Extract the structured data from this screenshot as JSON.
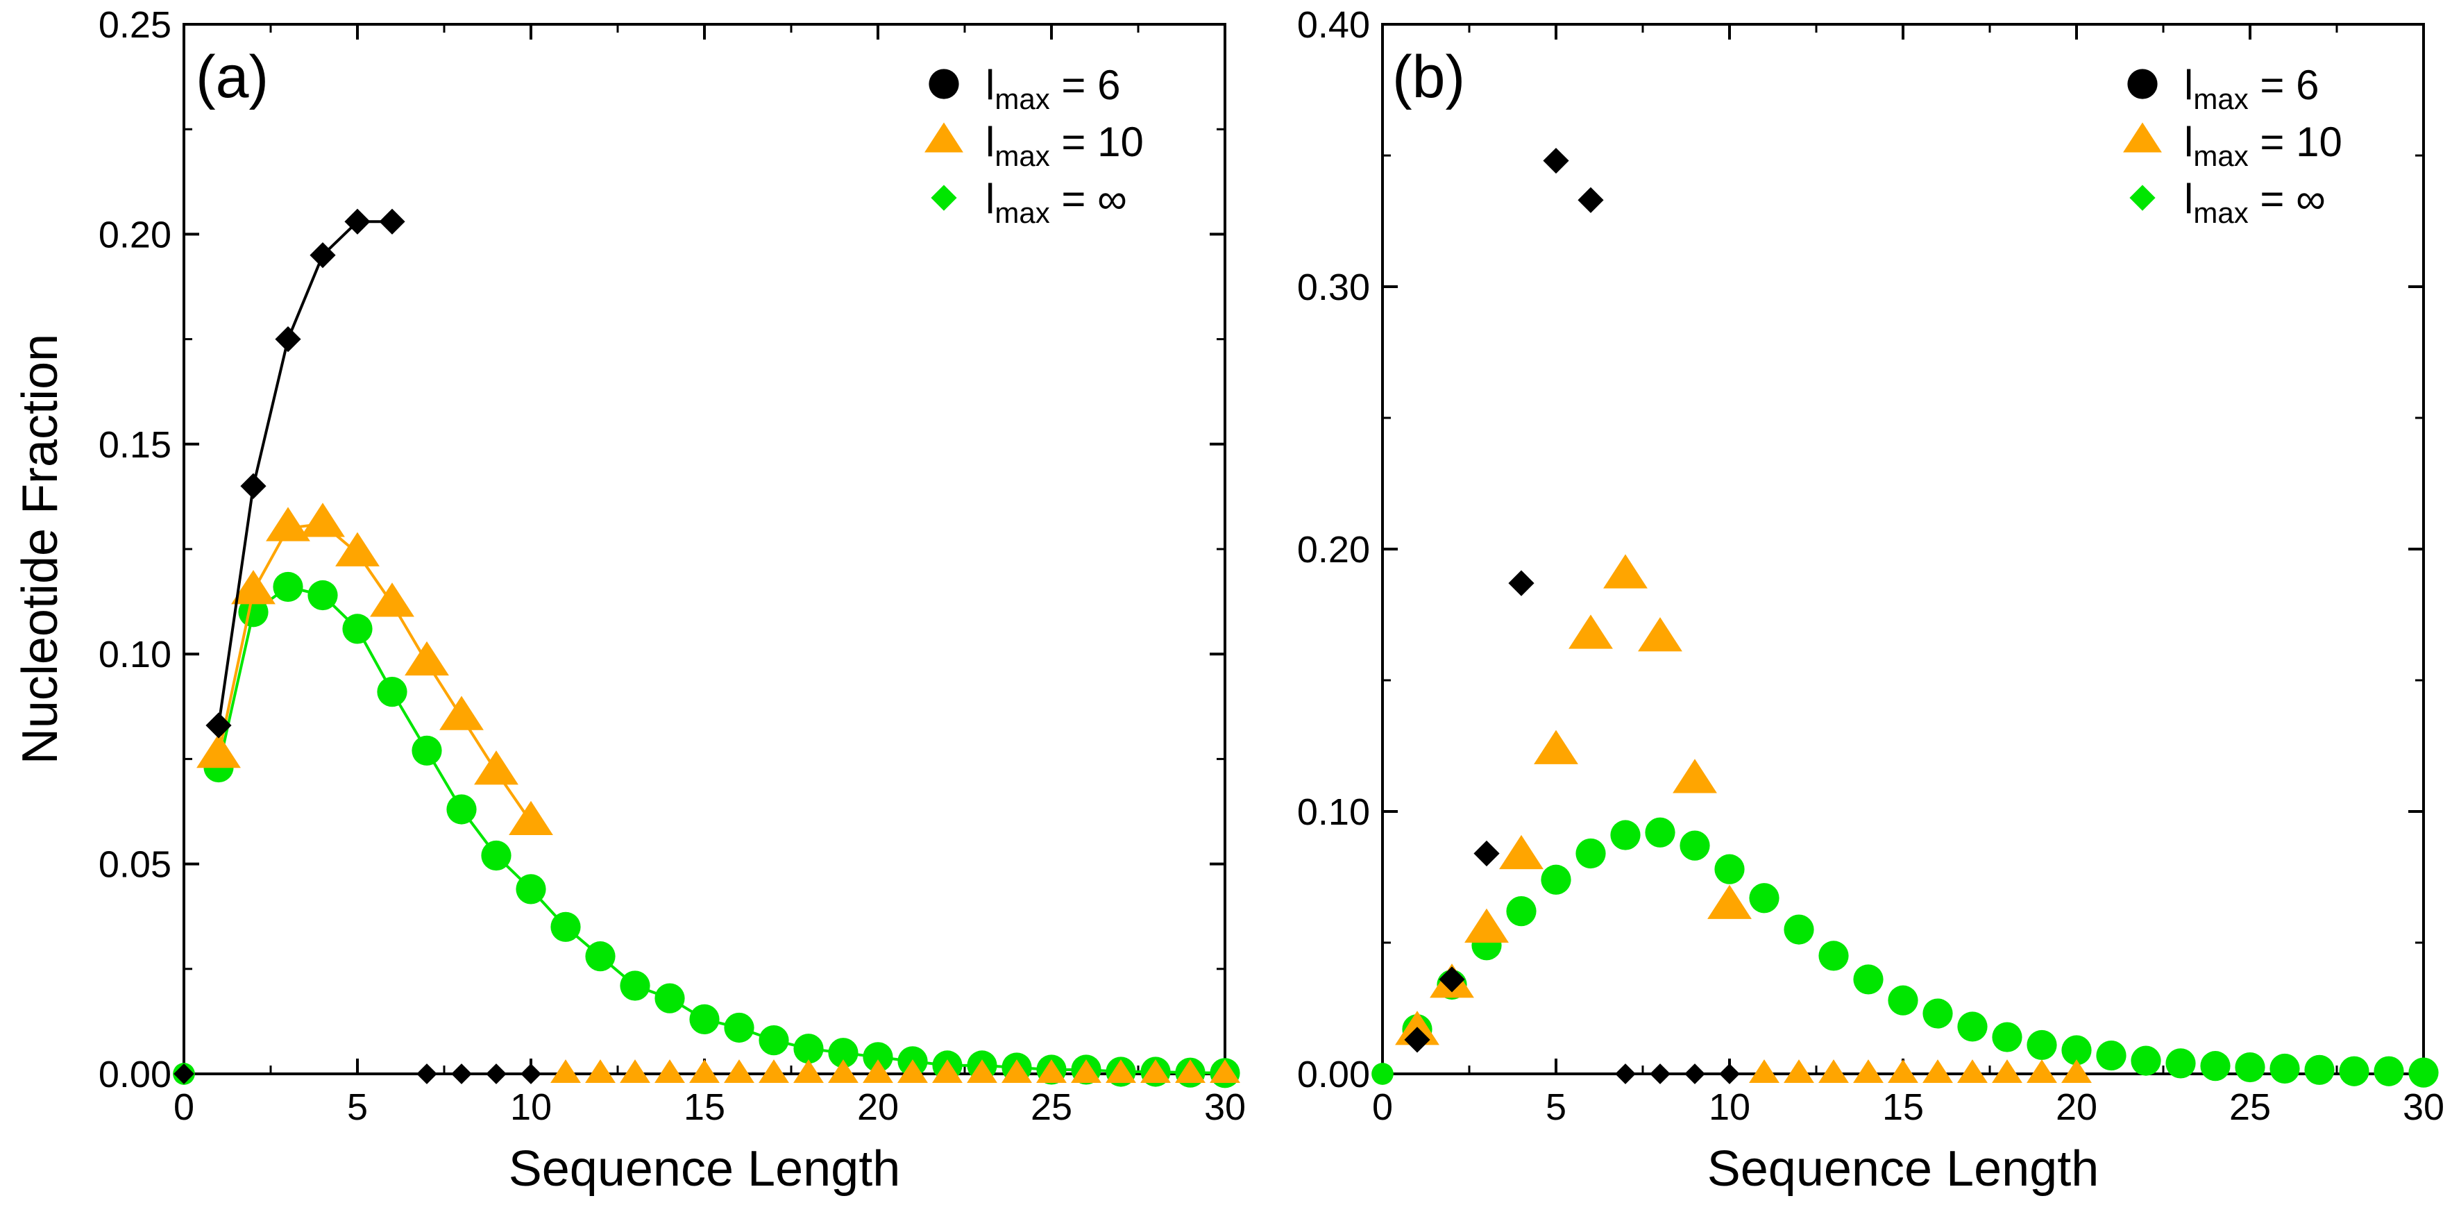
{
  "figure": {
    "ylabel": "Nucleotide Fraction",
    "xlabel": "Sequence Length"
  },
  "legend": [
    {
      "main": "l",
      "sub": "max",
      "eq": " = 6",
      "color": "#000000",
      "marker": "circle"
    },
    {
      "main": "l",
      "sub": "max",
      "eq": " = 10",
      "color": "#FFA500",
      "marker": "triangle"
    },
    {
      "main": "l",
      "sub": "max",
      "eq": " = ∞",
      "color": "#00E600",
      "marker": "diamond"
    }
  ],
  "chart_data": [
    {
      "panel": "(a)",
      "type": "scatter",
      "xlabel": "Sequence Length",
      "ylabel": "Nucleotide Fraction",
      "xlim": [
        0,
        30
      ],
      "ylim": [
        0,
        0.25
      ],
      "xticks": [
        "0",
        "5",
        "10",
        "15",
        "20",
        "25",
        "30"
      ],
      "yticks": [
        "0.00",
        "0.05",
        "0.10",
        "0.15",
        "0.20",
        "0.25"
      ],
      "series": [
        {
          "name": "l_max = 6",
          "color": "#000000",
          "marker": "diamond",
          "line": true,
          "x": [
            1,
            2,
            3,
            4,
            5,
            6
          ],
          "y": [
            0.083,
            0.14,
            0.175,
            0.195,
            0.203,
            0.203
          ],
          "zero_x": [
            0,
            7,
            8,
            9,
            10
          ]
        },
        {
          "name": "l_max = 10",
          "color": "#FFA500",
          "marker": "triangle",
          "line": true,
          "x": [
            1,
            2,
            3,
            4,
            5,
            6,
            7,
            8,
            9,
            10
          ],
          "y": [
            0.076,
            0.115,
            0.13,
            0.131,
            0.124,
            0.112,
            0.098,
            0.085,
            0.072,
            0.06
          ],
          "zero_x": [
            11,
            12,
            13,
            14,
            15,
            16,
            17,
            18,
            19,
            20,
            21,
            22,
            23,
            24,
            25,
            26,
            27,
            28,
            29,
            30
          ]
        },
        {
          "name": "l_max = ∞",
          "color": "#00E600",
          "marker": "circle",
          "line": true,
          "x": [
            1,
            2,
            3,
            4,
            5,
            6,
            7,
            8,
            9,
            10,
            11,
            12,
            13,
            14,
            15,
            16,
            17,
            18,
            19,
            20,
            21,
            22,
            23,
            24,
            25,
            26,
            27,
            28,
            29,
            30
          ],
          "y": [
            0.073,
            0.11,
            0.116,
            0.114,
            0.106,
            0.091,
            0.077,
            0.063,
            0.052,
            0.044,
            0.035,
            0.028,
            0.021,
            0.018,
            0.013,
            0.011,
            0.008,
            0.006,
            0.005,
            0.004,
            0.003,
            0.002,
            0.002,
            0.0015,
            0.001,
            0.001,
            0.0005,
            0.0005,
            0.0003,
            0.0002
          ],
          "zero_x": [
            0
          ]
        }
      ]
    },
    {
      "panel": "(b)",
      "type": "scatter",
      "xlabel": "Sequence Length",
      "ylabel": "",
      "xlim": [
        0,
        30
      ],
      "ylim": [
        0,
        0.4
      ],
      "xticks": [
        "0",
        "5",
        "10",
        "15",
        "20",
        "25",
        "30"
      ],
      "yticks": [
        "0.00",
        "0.10",
        "0.20",
        "0.30",
        "0.40"
      ],
      "series": [
        {
          "name": "l_max = 6",
          "color": "#000000",
          "marker": "diamond",
          "line": false,
          "x": [
            1,
            2,
            3,
            4,
            5,
            6
          ],
          "y": [
            0.013,
            0.036,
            0.084,
            0.187,
            0.348,
            0.333
          ],
          "zero_x": [
            7,
            8,
            9,
            10
          ]
        },
        {
          "name": "l_max = 10",
          "color": "#FFA500",
          "marker": "triangle",
          "line": false,
          "x": [
            1,
            2,
            3,
            4,
            5,
            6,
            7,
            8,
            9,
            10
          ],
          "y": [
            0.016,
            0.034,
            0.055,
            0.083,
            0.123,
            0.167,
            0.19,
            0.166,
            0.112,
            0.064
          ],
          "zero_x": [
            11,
            12,
            13,
            14,
            15,
            16,
            17,
            18,
            19,
            20
          ]
        },
        {
          "name": "l_max = ∞",
          "color": "#00E600",
          "marker": "circle",
          "line": false,
          "x": [
            1,
            2,
            3,
            4,
            5,
            6,
            7,
            8,
            9,
            10,
            11,
            12,
            13,
            14,
            15,
            16,
            17,
            18,
            19,
            20,
            21,
            22,
            23,
            24,
            25,
            26,
            27,
            28,
            29,
            30
          ],
          "y": [
            0.017,
            0.034,
            0.049,
            0.062,
            0.074,
            0.084,
            0.091,
            0.092,
            0.087,
            0.078,
            0.067,
            0.055,
            0.045,
            0.036,
            0.028,
            0.023,
            0.018,
            0.014,
            0.011,
            0.009,
            0.007,
            0.005,
            0.004,
            0.003,
            0.0025,
            0.002,
            0.0015,
            0.001,
            0.001,
            0.0005
          ],
          "zero_x": [
            0
          ]
        }
      ]
    }
  ]
}
